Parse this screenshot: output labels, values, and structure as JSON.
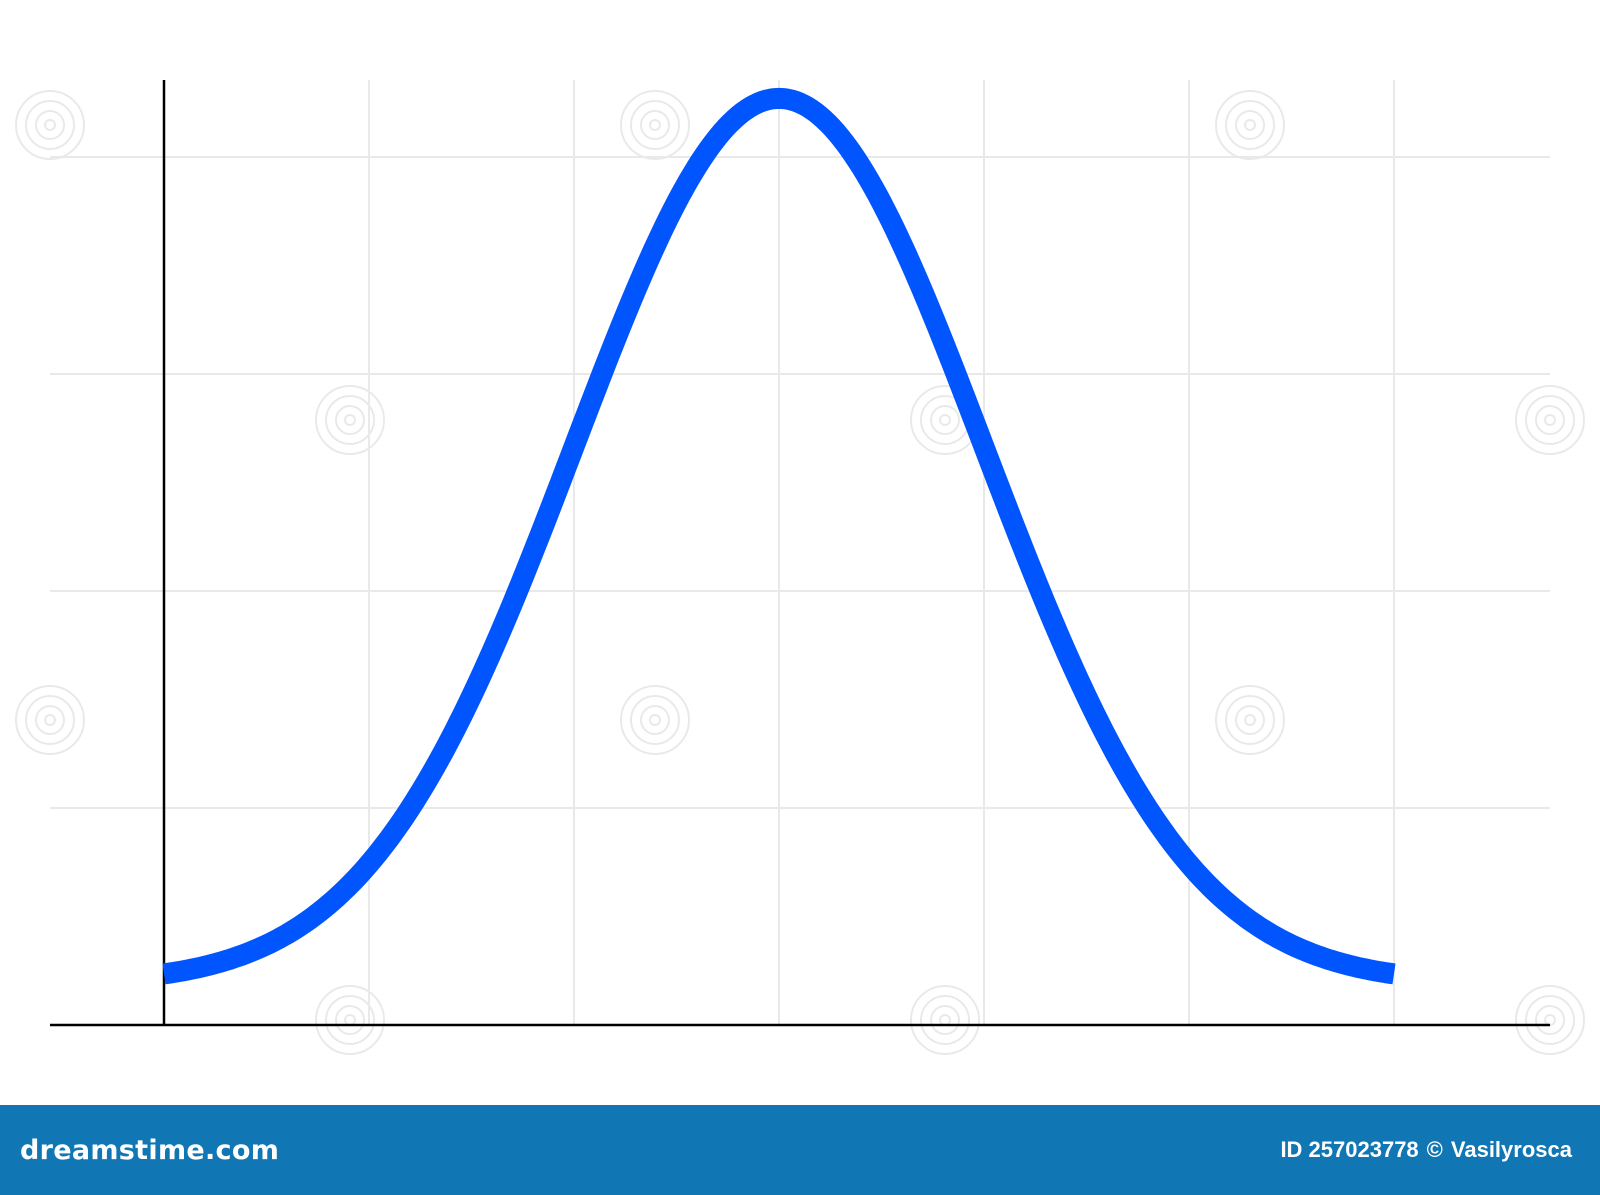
{
  "colors": {
    "curve": "#0055ff",
    "axis": "#000000",
    "grid": "#e9e9e9",
    "footer_bg": "#1177b4",
    "footer_text": "#ffffff",
    "watermark": "#d8d8d8"
  },
  "chart_data": {
    "type": "line",
    "title": "",
    "xlabel": "",
    "ylabel": "",
    "grid": true,
    "legend": "none",
    "xlim": [
      -3.54,
      3.78
    ],
    "ylim": [
      0,
      4.37
    ],
    "x_grid": [
      -2,
      -1,
      0,
      1,
      2,
      3
    ],
    "y_grid": [
      1,
      2,
      3,
      4
    ],
    "series": [
      {
        "distribution": "normal",
        "mean": 0,
        "std_dev": 1,
        "baseline": 0.19,
        "peak": 4.27,
        "x_range": [
          -3,
          3
        ]
      }
    ]
  },
  "footer": {
    "brand": "dreamstime.com",
    "id_label": "ID 257023778",
    "copyright_symbol": "©",
    "author": "Vasilyrosca"
  },
  "watermark": {
    "text": "dreamstime"
  }
}
